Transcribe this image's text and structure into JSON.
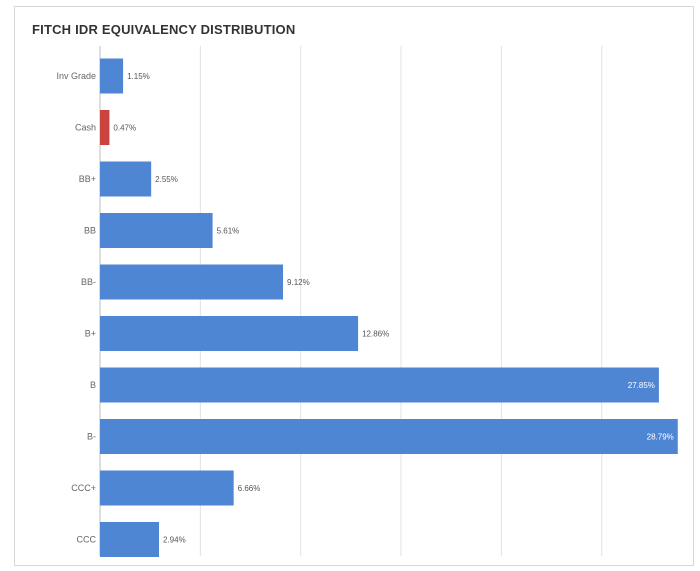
{
  "chart_data": {
    "type": "bar",
    "orientation": "horizontal",
    "title": "FITCH IDR EQUIVALENCY DISTRIBUTION",
    "xlabel": "",
    "ylabel": "",
    "xlim": [
      0,
      29.0
    ],
    "grid": true,
    "categories": [
      "Inv Grade",
      "Cash",
      "BB+",
      "BB",
      "BB-",
      "B+",
      "B",
      "B-",
      "CCC+",
      "CCC"
    ],
    "values": [
      1.15,
      0.47,
      2.55,
      5.61,
      9.12,
      12.86,
      27.85,
      28.79,
      6.66,
      2.94
    ],
    "value_labels": [
      "1.15%",
      "0.47%",
      "2.55%",
      "5.61%",
      "9.12%",
      "12.86%",
      "27.85%",
      "28.79%",
      "6.66%",
      "2.94%"
    ],
    "colors": [
      "#4f86d4",
      "#c9443e",
      "#4f86d4",
      "#4f86d4",
      "#4f86d4",
      "#4f86d4",
      "#4f86d4",
      "#4f86d4",
      "#4f86d4",
      "#4f86d4"
    ]
  }
}
